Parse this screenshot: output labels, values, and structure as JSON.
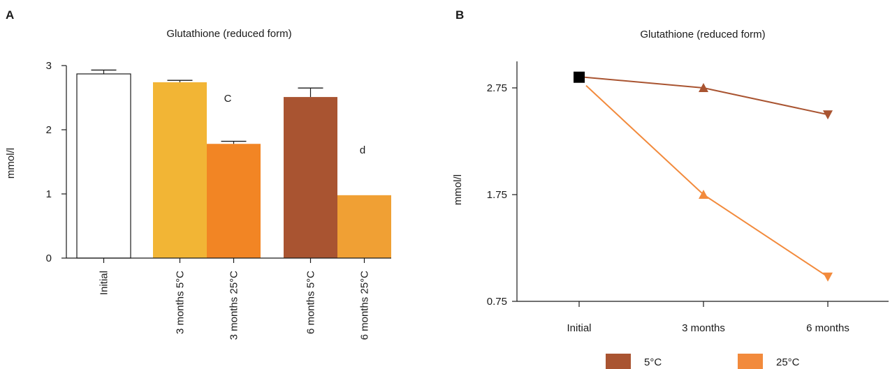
{
  "colors": {
    "initial": "#ffffff",
    "three_5c": "#f2b535",
    "three_25c": "#f28524",
    "six_5c": "#a95431",
    "six_25c": "#f0a034",
    "line_5c": "#a95431",
    "line_25c": "#f28a3c",
    "initial_marker": "#000000"
  },
  "chart_data": [
    {
      "panel": "A",
      "type": "bar",
      "title": "Glutathione (reduced form)",
      "ylabel": "mmol/l",
      "ylim": [
        0,
        3
      ],
      "yticks": [
        "0",
        "1",
        "2",
        "3"
      ],
      "categories": [
        "Initial",
        "3 months 5°C",
        "3 months 25°C",
        "6 months 5°C",
        "6 months 25°C"
      ],
      "values": [
        2.87,
        2.74,
        1.78,
        2.51,
        0.98
      ],
      "errors": [
        0.06,
        0.03,
        0.04,
        0.14,
        0
      ],
      "annotations": [
        {
          "category": "3 months 25°C",
          "text": "C"
        },
        {
          "category": "6 months 25°C",
          "text": "d"
        }
      ]
    },
    {
      "panel": "B",
      "type": "line",
      "title": "Glutathione (reduced form)",
      "ylabel": "mmol/l",
      "ylim": [
        0.75,
        3
      ],
      "yticks": [
        "0.75",
        "1.75",
        "2.75"
      ],
      "x": [
        "Initial",
        "3 months",
        "6 months"
      ],
      "initial_value": 2.85,
      "series": [
        {
          "name": "5°C",
          "values": [
            2.85,
            2.75,
            2.5
          ]
        },
        {
          "name": "25°C",
          "values": [
            2.85,
            1.75,
            0.98
          ]
        }
      ],
      "legend": "bottom"
    }
  ]
}
